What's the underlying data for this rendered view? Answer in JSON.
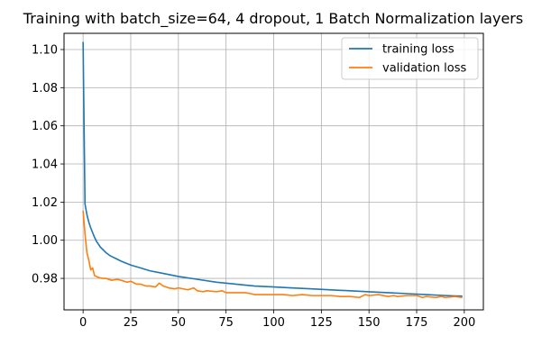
{
  "chart_data": {
    "type": "line",
    "title": "Training with batch_size=64, 4 dropout, 1 Batch Normalization layers",
    "xlabel": "",
    "ylabel": "",
    "xlim": [
      -10,
      210
    ],
    "ylim": [
      0.9635,
      1.1085
    ],
    "xticks": [
      0,
      25,
      50,
      75,
      100,
      125,
      150,
      175,
      200
    ],
    "yticks": [
      0.98,
      1.0,
      1.02,
      1.04,
      1.06,
      1.08,
      1.1
    ],
    "grid": true,
    "legend_position": "top-right",
    "series": [
      {
        "name": "training loss",
        "color": "#1f77b4",
        "x": [
          0,
          1,
          2,
          3,
          4,
          5,
          6,
          7,
          8,
          9,
          10,
          12,
          14,
          16,
          18,
          20,
          25,
          30,
          35,
          40,
          45,
          50,
          60,
          70,
          80,
          90,
          100,
          110,
          120,
          130,
          140,
          150,
          160,
          170,
          180,
          190,
          199
        ],
        "y": [
          1.104,
          1.019,
          1.0135,
          1.0095,
          1.0065,
          1.004,
          1.0015,
          0.9995,
          0.998,
          0.9965,
          0.9955,
          0.9935,
          0.992,
          0.991,
          0.99,
          0.989,
          0.987,
          0.9855,
          0.984,
          0.983,
          0.982,
          0.981,
          0.9795,
          0.978,
          0.977,
          0.976,
          0.9755,
          0.975,
          0.9745,
          0.974,
          0.9735,
          0.973,
          0.9725,
          0.972,
          0.9715,
          0.971,
          0.9707
        ]
      },
      {
        "name": "validation loss",
        "color": "#ff7f0e",
        "x": [
          0,
          1,
          2,
          3,
          4,
          5,
          6,
          7,
          8,
          10,
          12,
          15,
          18,
          20,
          23,
          25,
          28,
          30,
          33,
          35,
          38,
          40,
          42,
          45,
          48,
          50,
          55,
          58,
          60,
          63,
          65,
          70,
          73,
          75,
          80,
          85,
          88,
          90,
          95,
          100,
          105,
          110,
          115,
          120,
          125,
          130,
          135,
          140,
          145,
          148,
          150,
          155,
          160,
          163,
          165,
          170,
          175,
          178,
          180,
          185,
          188,
          190,
          195,
          199
        ],
        "y": [
          1.0155,
          1.0035,
          0.9935,
          0.9895,
          0.9845,
          0.9855,
          0.9815,
          0.981,
          0.9805,
          0.98,
          0.98,
          0.979,
          0.9795,
          0.979,
          0.978,
          0.9785,
          0.977,
          0.977,
          0.976,
          0.976,
          0.9755,
          0.9775,
          0.976,
          0.975,
          0.9745,
          0.975,
          0.974,
          0.975,
          0.9735,
          0.973,
          0.9735,
          0.973,
          0.9735,
          0.9725,
          0.9725,
          0.9725,
          0.972,
          0.9715,
          0.9715,
          0.9715,
          0.9715,
          0.971,
          0.9715,
          0.971,
          0.971,
          0.971,
          0.9705,
          0.9705,
          0.97,
          0.9715,
          0.971,
          0.9715,
          0.9705,
          0.971,
          0.9705,
          0.971,
          0.971,
          0.97,
          0.9705,
          0.97,
          0.9705,
          0.97,
          0.9705,
          0.97
        ]
      }
    ]
  }
}
